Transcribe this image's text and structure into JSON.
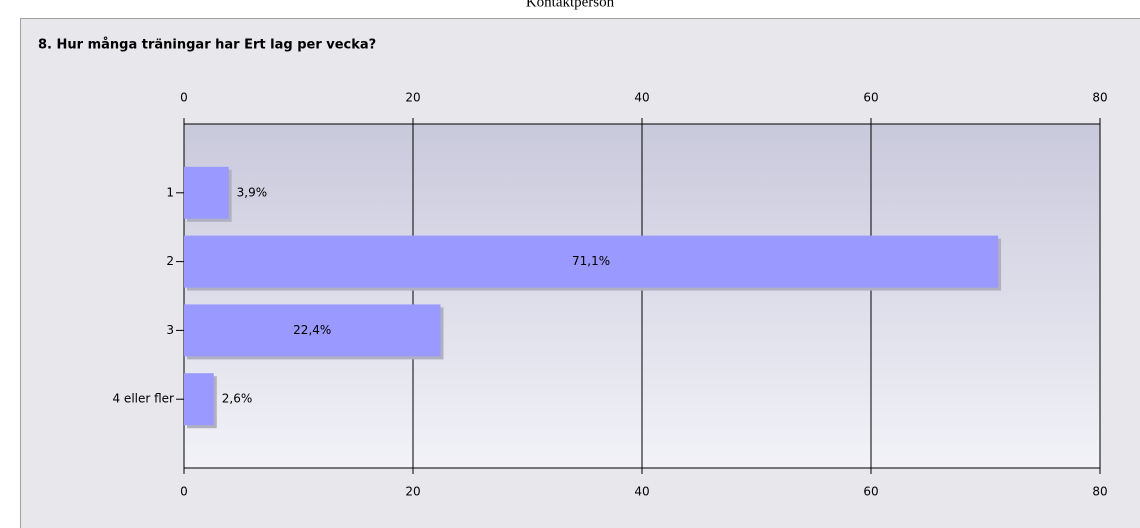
{
  "page_header": "Kontaktperson",
  "chart_data": {
    "type": "bar",
    "orientation": "horizontal",
    "title": "8. Hur många träningar har Ert lag per vecka?",
    "categories": [
      "1",
      "2",
      "3",
      "4 eller fler"
    ],
    "values": [
      3.9,
      71.1,
      22.4,
      2.6
    ],
    "value_labels": [
      "3,9%",
      "71,1%",
      "22,4%",
      "2,6%"
    ],
    "color": "#9999ff",
    "xlim": [
      0,
      80
    ],
    "xticks": [
      0,
      20,
      40,
      60,
      80
    ],
    "grid": true
  }
}
